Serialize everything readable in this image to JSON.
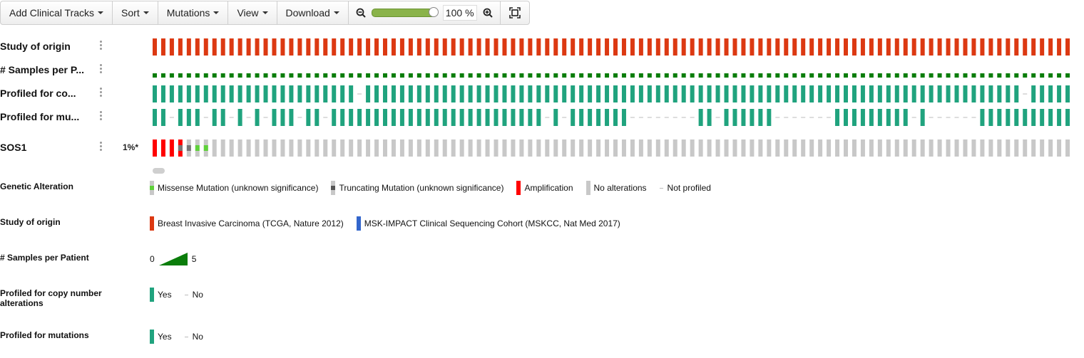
{
  "toolbar": {
    "add_clinical_tracks": "Add Clinical Tracks",
    "sort": "Sort",
    "mutations": "Mutations",
    "view": "View",
    "download": "Download",
    "zoom_value": "100",
    "zoom_unit": "%",
    "zoom_level": 1.0
  },
  "tracks": {
    "study_of_origin": "Study of origin",
    "samples_per_patient": "# Samples per P...",
    "profiled_cna": "Profiled for co...",
    "profiled_mut": "Profiled for mu...",
    "gene": "SOS1",
    "gene_pct": "1%*"
  },
  "legend": {
    "genetic_alteration": {
      "title": "Genetic Alteration",
      "items": [
        "Missense Mutation (unknown significance)",
        "Truncating Mutation (unknown significance)",
        "Amplification",
        "No alterations",
        "Not profiled"
      ]
    },
    "study_of_origin": {
      "title": "Study of origin",
      "items": [
        "Breast Invasive Carcinoma (TCGA, Nature 2012)",
        "MSK-IMPACT Clinical Sequencing Cohort (MSKCC, Nat Med 2017)"
      ]
    },
    "samples_per_patient": {
      "title": "# Samples per Patient",
      "min": "0",
      "max": "5"
    },
    "profiled_cna": {
      "title": "Profiled for copy number alterations",
      "yes": "Yes",
      "no": "No"
    },
    "profiled_mut": {
      "title": "Profiled for mutations",
      "yes": "Yes",
      "no": "No"
    }
  },
  "colors": {
    "study_tcga": "#dc3912",
    "study_msk": "#3366cc",
    "samples": "#0a7d0a",
    "profiled": "#20a37e",
    "amplification": "#ff0000",
    "missense": "#5fd13a",
    "truncating": "#777777",
    "no_alteration": "#c8c8c8",
    "not_profiled": "#c8c8c8"
  },
  "oncoprint": {
    "column_count": 108,
    "profiled_cna_missing": [
      24,
      102
    ],
    "profiled_mut_pattern": "1101110110101011101101111111111111111111111111010111111100000000110111111000000011111111101000000111111111111111",
    "gene_alterations": {
      "amplification": [
        0,
        1,
        2,
        3
      ],
      "missense": [
        5,
        6
      ],
      "truncating": [
        3,
        4
      ]
    }
  },
  "icons": {
    "zoom_out": "zoom-out-icon",
    "zoom_in": "zoom-in-icon",
    "fit": "fit-to-screen-icon"
  }
}
